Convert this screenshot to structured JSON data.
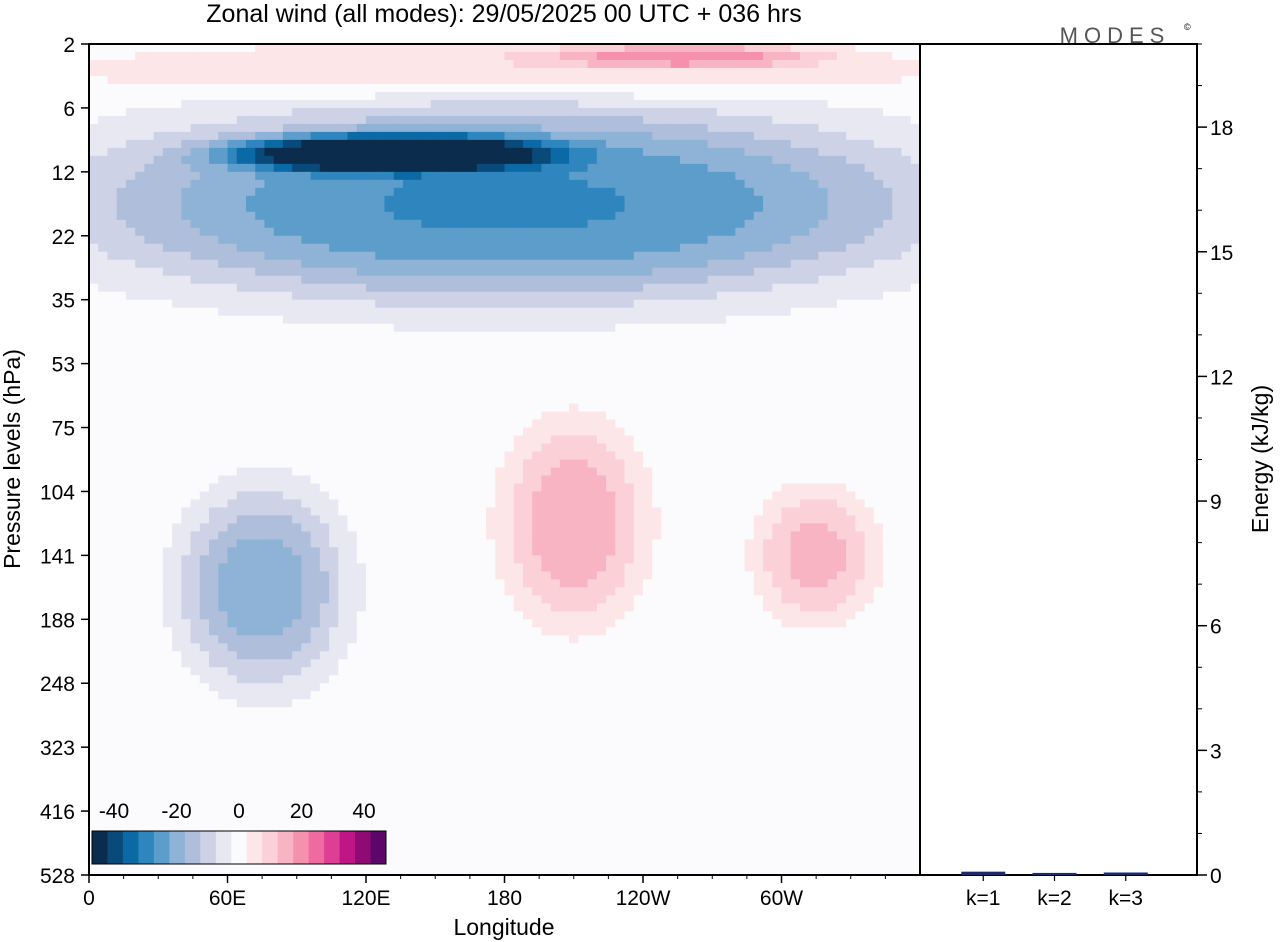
{
  "title": "Zonal wind (all modes):  29/05/2025  00 UTC  + 036 hrs",
  "logo": "MODES",
  "logo_mark": "©",
  "chart_data": [
    {
      "type": "heatmap",
      "xlabel": "Longitude",
      "ylabel": "Pressure levels (hPa)",
      "x_ticks": [
        "0",
        "60E",
        "120E",
        "180",
        "120W",
        "60W"
      ],
      "x_tick_lon": [
        0,
        60,
        120,
        180,
        240,
        300
      ],
      "xlim": [
        0,
        360
      ],
      "y_ticks": [
        "2",
        "6",
        "12",
        "22",
        "35",
        "53",
        "75",
        "104",
        "141",
        "188",
        "248",
        "323",
        "416",
        "528"
      ],
      "colorbar": {
        "labels": [
          "-40",
          "-20",
          "0",
          "20",
          "40"
        ],
        "colors": [
          "#0b2c4d",
          "#0a4a7a",
          "#0b6aa5",
          "#2f86bf",
          "#5d9dcc",
          "#8fb3d6",
          "#afbedb",
          "#cdd2e6",
          "#e8e8f2",
          "#fbfbfd",
          "#fde6e8",
          "#fbd0d6",
          "#f8b4c2",
          "#f591ad",
          "#ef6aa0",
          "#de3e93",
          "#bf1585",
          "#8f0a75",
          "#5b0668"
        ]
      },
      "field_features": [
        {
          "lon": [
            0,
            360
          ],
          "level": [
            2,
            5
          ],
          "u": 8
        },
        {
          "lon": [
            200,
            320
          ],
          "level": [
            2,
            3
          ],
          "u": 15
        },
        {
          "lon": [
            0,
            360
          ],
          "level": [
            6,
            35
          ],
          "u": -28
        },
        {
          "lon": [
            60,
            200
          ],
          "level": [
            8,
            12
          ],
          "u": -38
        },
        {
          "lon": [
            40,
            110
          ],
          "level": [
            104,
            248
          ],
          "u": -20
        },
        {
          "lon": [
            180,
            240
          ],
          "level": [
            75,
            188
          ],
          "u": 16
        },
        {
          "lon": [
            290,
            340
          ],
          "level": [
            104,
            188
          ],
          "u": 14
        }
      ]
    },
    {
      "type": "bar",
      "categories": [
        "k=1",
        "k=2",
        "k=3"
      ],
      "values": [
        0.08,
        0.05,
        0.06
      ],
      "ylabel": "Energy (kJ/kg)",
      "y_ticks": [
        "0",
        "3",
        "6",
        "9",
        "12",
        "15",
        "18"
      ],
      "ylim": [
        0,
        20
      ],
      "bar_color": "#1a2a6b"
    }
  ]
}
